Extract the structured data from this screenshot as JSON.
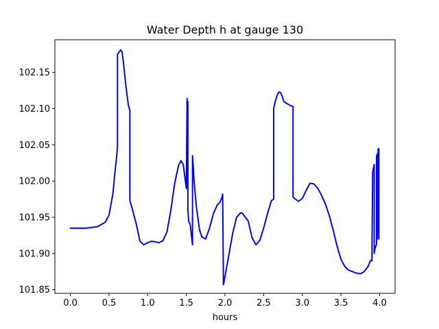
{
  "chart_data": {
    "type": "line",
    "title": "Water Depth h at gauge 130",
    "xlabel": "hours",
    "ylabel": "",
    "xlim": [
      -0.2,
      4.2
    ],
    "ylim": [
      101.845,
      102.195
    ],
    "xticks": [
      0.0,
      0.5,
      1.0,
      1.5,
      2.0,
      2.5,
      3.0,
      3.5,
      4.0
    ],
    "xtick_labels": [
      "0.0",
      "0.5",
      "1.0",
      "1.5",
      "2.0",
      "2.5",
      "3.0",
      "3.5",
      "4.0"
    ],
    "yticks": [
      101.85,
      101.9,
      101.95,
      102.0,
      102.05,
      102.1,
      102.15
    ],
    "ytick_labels": [
      "101.85",
      "101.90",
      "101.95",
      "102.00",
      "102.05",
      "102.10",
      "102.15"
    ],
    "grid": false,
    "series": [
      {
        "color": "#0000ff",
        "x": [
          0.0,
          0.2,
          0.35,
          0.45,
          0.5,
          0.55,
          0.58,
          0.6,
          0.61,
          0.61,
          0.63,
          0.65,
          0.67,
          0.69,
          0.72,
          0.75,
          0.77,
          0.77,
          0.8,
          0.85,
          0.9,
          0.95,
          1.0,
          1.05,
          1.1,
          1.15,
          1.2,
          1.25,
          1.3,
          1.35,
          1.4,
          1.43,
          1.46,
          1.5,
          1.51,
          1.51,
          1.52,
          1.52,
          1.53,
          1.55,
          1.58,
          1.58,
          1.59,
          1.6,
          1.63,
          1.67,
          1.7,
          1.75,
          1.8,
          1.85,
          1.9,
          1.93,
          1.96,
          1.97,
          1.98,
          1.98,
          2.0,
          2.05,
          2.1,
          2.15,
          2.2,
          2.22,
          2.25,
          2.3,
          2.35,
          2.4,
          2.45,
          2.5,
          2.55,
          2.6,
          2.63,
          2.63,
          2.65,
          2.68,
          2.7,
          2.72,
          2.74,
          2.76,
          2.8,
          2.85,
          2.88,
          2.88,
          2.9,
          2.95,
          3.0,
          3.05,
          3.1,
          3.15,
          3.2,
          3.25,
          3.3,
          3.35,
          3.4,
          3.45,
          3.5,
          3.55,
          3.6,
          3.65,
          3.7,
          3.75,
          3.8,
          3.85,
          3.88,
          3.9,
          3.91,
          3.91,
          3.93,
          3.93,
          3.94,
          3.96,
          3.96,
          3.97,
          3.97,
          3.98,
          3.98,
          3.99,
          3.99
        ],
        "y": [
          101.935,
          101.935,
          101.937,
          101.943,
          101.953,
          101.982,
          102.015,
          102.035,
          102.047,
          102.175,
          102.178,
          102.181,
          102.178,
          102.16,
          102.13,
          102.105,
          102.097,
          101.973,
          101.962,
          101.942,
          101.917,
          101.912,
          101.915,
          101.917,
          101.916,
          101.915,
          101.918,
          101.93,
          101.96,
          101.997,
          102.022,
          102.028,
          102.023,
          101.99,
          102.114,
          101.99,
          102.11,
          101.96,
          101.945,
          101.94,
          101.912,
          102.035,
          102.02,
          102.0,
          101.965,
          101.933,
          101.923,
          101.92,
          101.935,
          101.955,
          101.967,
          101.97,
          101.977,
          101.982,
          101.857,
          101.857,
          101.868,
          101.898,
          101.928,
          101.95,
          101.956,
          101.956,
          101.952,
          101.945,
          101.922,
          101.912,
          101.918,
          101.935,
          101.955,
          101.973,
          101.975,
          102.1,
          102.11,
          102.12,
          102.123,
          102.122,
          102.117,
          102.11,
          102.107,
          102.104,
          102.103,
          101.978,
          101.976,
          101.972,
          101.976,
          101.987,
          101.997,
          101.996,
          101.99,
          101.98,
          101.968,
          101.952,
          101.932,
          101.91,
          101.892,
          101.882,
          101.877,
          101.875,
          101.873,
          101.872,
          101.875,
          101.882,
          101.89,
          101.89,
          102.012,
          102.012,
          102.023,
          101.9,
          101.907,
          101.913,
          102.035,
          101.92,
          102.038,
          101.93,
          102.044,
          101.92,
          102.045
        ]
      }
    ]
  }
}
